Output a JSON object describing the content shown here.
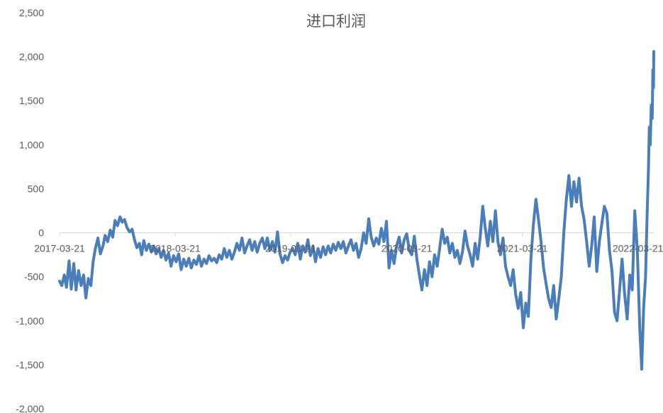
{
  "chart_data": {
    "type": "line",
    "title": "进口利润",
    "xlabel": "",
    "ylabel": "",
    "ylim": [
      -2000,
      2500
    ],
    "y_ticks": [
      2500,
      2000,
      1500,
      1000,
      500,
      0,
      -500,
      -1000,
      -1500,
      -2000
    ],
    "y_tick_labels": [
      "2,500",
      "2,000",
      "1,500",
      "1,000",
      "500",
      "0",
      "-500",
      "-1,000",
      "-1,500",
      "-2,000"
    ],
    "x_tick_labels": [
      "2017-03-21",
      "2018-03-21",
      "2019-03-21",
      "2020-03-21",
      "2021-03-21",
      "2022-03-21"
    ],
    "xlim": [
      "2017-03-21",
      "2022-05-10"
    ],
    "grid": false,
    "legend": "none",
    "colors": {
      "series": "#4a7ebb"
    },
    "series": [
      {
        "values": [
          [
            "2017-03-21",
            -550
          ],
          [
            "2017-03-28",
            -600
          ],
          [
            "2017-04-05",
            -480
          ],
          [
            "2017-04-12",
            -620
          ],
          [
            "2017-04-20",
            -320
          ],
          [
            "2017-04-27",
            -640
          ],
          [
            "2017-05-05",
            -350
          ],
          [
            "2017-05-12",
            -650
          ],
          [
            "2017-05-20",
            -430
          ],
          [
            "2017-05-28",
            -600
          ],
          [
            "2017-06-05",
            -480
          ],
          [
            "2017-06-12",
            -740
          ],
          [
            "2017-06-20",
            -520
          ],
          [
            "2017-06-28",
            -600
          ],
          [
            "2017-07-05",
            -330
          ],
          [
            "2017-07-12",
            -180
          ],
          [
            "2017-07-20",
            -60
          ],
          [
            "2017-07-28",
            -240
          ],
          [
            "2017-08-05",
            -150
          ],
          [
            "2017-08-12",
            -30
          ],
          [
            "2017-08-20",
            -100
          ],
          [
            "2017-08-28",
            30
          ],
          [
            "2017-09-05",
            -50
          ],
          [
            "2017-09-12",
            140
          ],
          [
            "2017-09-20",
            80
          ],
          [
            "2017-09-28",
            180
          ],
          [
            "2017-10-05",
            120
          ],
          [
            "2017-10-12",
            150
          ],
          [
            "2017-10-20",
            60
          ],
          [
            "2017-10-28",
            10
          ],
          [
            "2017-11-05",
            40
          ],
          [
            "2017-11-12",
            -70
          ],
          [
            "2017-11-20",
            -170
          ],
          [
            "2017-11-28",
            -120
          ],
          [
            "2017-12-05",
            -250
          ],
          [
            "2017-12-12",
            -90
          ],
          [
            "2017-12-20",
            -200
          ],
          [
            "2017-12-28",
            -130
          ],
          [
            "2018-01-05",
            -220
          ],
          [
            "2018-01-12",
            -150
          ],
          [
            "2018-01-20",
            -240
          ],
          [
            "2018-01-28",
            -180
          ],
          [
            "2018-02-05",
            -280
          ],
          [
            "2018-02-12",
            -200
          ],
          [
            "2018-02-20",
            -310
          ],
          [
            "2018-02-28",
            -230
          ],
          [
            "2018-03-08",
            -380
          ],
          [
            "2018-03-16",
            -260
          ],
          [
            "2018-03-24",
            -330
          ],
          [
            "2018-04-01",
            -240
          ],
          [
            "2018-04-09",
            -420
          ],
          [
            "2018-04-17",
            -300
          ],
          [
            "2018-04-25",
            -380
          ],
          [
            "2018-05-03",
            -290
          ],
          [
            "2018-05-11",
            -400
          ],
          [
            "2018-05-19",
            -310
          ],
          [
            "2018-05-27",
            -360
          ],
          [
            "2018-06-04",
            -260
          ],
          [
            "2018-06-12",
            -380
          ],
          [
            "2018-06-20",
            -300
          ],
          [
            "2018-06-28",
            -350
          ],
          [
            "2018-07-06",
            -260
          ],
          [
            "2018-07-14",
            -320
          ],
          [
            "2018-07-22",
            -290
          ],
          [
            "2018-07-30",
            -340
          ],
          [
            "2018-08-07",
            -250
          ],
          [
            "2018-08-15",
            -300
          ],
          [
            "2018-08-23",
            -180
          ],
          [
            "2018-08-31",
            -280
          ],
          [
            "2018-09-08",
            -200
          ],
          [
            "2018-09-16",
            -300
          ],
          [
            "2018-09-24",
            -220
          ],
          [
            "2018-10-02",
            -120
          ],
          [
            "2018-10-10",
            -200
          ],
          [
            "2018-10-18",
            -60
          ],
          [
            "2018-10-26",
            -230
          ],
          [
            "2018-11-03",
            -150
          ],
          [
            "2018-11-11",
            -80
          ],
          [
            "2018-11-19",
            -200
          ],
          [
            "2018-11-27",
            -100
          ],
          [
            "2018-12-05",
            -220
          ],
          [
            "2018-12-13",
            -120
          ],
          [
            "2018-12-21",
            -60
          ],
          [
            "2018-12-29",
            -180
          ],
          [
            "2019-01-06",
            -60
          ],
          [
            "2019-01-14",
            -200
          ],
          [
            "2019-01-22",
            -100
          ],
          [
            "2019-01-30",
            -220
          ],
          [
            "2019-02-07",
            10
          ],
          [
            "2019-02-15",
            -240
          ],
          [
            "2019-02-23",
            -340
          ],
          [
            "2019-03-03",
            -260
          ],
          [
            "2019-03-11",
            -310
          ],
          [
            "2019-03-19",
            -220
          ],
          [
            "2019-03-27",
            -180
          ],
          [
            "2019-04-04",
            -250
          ],
          [
            "2019-04-12",
            -120
          ],
          [
            "2019-04-20",
            -300
          ],
          [
            "2019-04-28",
            -150
          ],
          [
            "2019-05-06",
            -220
          ],
          [
            "2019-05-14",
            -80
          ],
          [
            "2019-05-22",
            -260
          ],
          [
            "2019-05-30",
            -150
          ],
          [
            "2019-06-07",
            -330
          ],
          [
            "2019-06-15",
            -180
          ],
          [
            "2019-06-23",
            -280
          ],
          [
            "2019-07-01",
            -160
          ],
          [
            "2019-07-09",
            -250
          ],
          [
            "2019-07-17",
            -150
          ],
          [
            "2019-07-25",
            -230
          ],
          [
            "2019-08-02",
            -130
          ],
          [
            "2019-08-10",
            -200
          ],
          [
            "2019-08-18",
            -110
          ],
          [
            "2019-08-26",
            -180
          ],
          [
            "2019-09-03",
            -100
          ],
          [
            "2019-09-11",
            -230
          ],
          [
            "2019-09-19",
            -150
          ],
          [
            "2019-09-27",
            -80
          ],
          [
            "2019-10-05",
            -200
          ],
          [
            "2019-10-13",
            -120
          ],
          [
            "2019-10-21",
            -280
          ],
          [
            "2019-10-29",
            -180
          ],
          [
            "2019-11-06",
            0
          ],
          [
            "2019-11-14",
            -120
          ],
          [
            "2019-11-22",
            160
          ],
          [
            "2019-11-30",
            -50
          ],
          [
            "2019-12-08",
            -150
          ],
          [
            "2019-12-16",
            -60
          ],
          [
            "2019-12-24",
            -130
          ],
          [
            "2020-01-01",
            50
          ],
          [
            "2020-01-09",
            -100
          ],
          [
            "2020-01-17",
            130
          ],
          [
            "2020-01-25",
            -400
          ],
          [
            "2020-02-02",
            -200
          ],
          [
            "2020-02-10",
            -350
          ],
          [
            "2020-02-18",
            -150
          ],
          [
            "2020-02-26",
            -50
          ],
          [
            "2020-03-05",
            -230
          ],
          [
            "2020-03-13",
            -80
          ],
          [
            "2020-03-21",
            -10
          ],
          [
            "2020-03-29",
            -200
          ],
          [
            "2020-04-06",
            -250
          ],
          [
            "2020-04-14",
            -40
          ],
          [
            "2020-04-22",
            -300
          ],
          [
            "2020-04-30",
            -480
          ],
          [
            "2020-05-08",
            -650
          ],
          [
            "2020-05-16",
            -420
          ],
          [
            "2020-05-24",
            -600
          ],
          [
            "2020-06-01",
            -330
          ],
          [
            "2020-06-09",
            -500
          ],
          [
            "2020-06-17",
            -250
          ],
          [
            "2020-06-25",
            -380
          ],
          [
            "2020-07-03",
            -180
          ],
          [
            "2020-07-11",
            40
          ],
          [
            "2020-07-19",
            -120
          ],
          [
            "2020-07-27",
            -50
          ],
          [
            "2020-08-04",
            -230
          ],
          [
            "2020-08-12",
            -120
          ],
          [
            "2020-08-20",
            -280
          ],
          [
            "2020-08-28",
            -200
          ],
          [
            "2020-09-05",
            -350
          ],
          [
            "2020-09-13",
            -220
          ],
          [
            "2020-09-21",
            20
          ],
          [
            "2020-09-29",
            -150
          ],
          [
            "2020-10-07",
            -250
          ],
          [
            "2020-10-15",
            -380
          ],
          [
            "2020-10-23",
            -120
          ],
          [
            "2020-10-31",
            -300
          ],
          [
            "2020-11-08",
            -50
          ],
          [
            "2020-11-16",
            300
          ],
          [
            "2020-11-24",
            50
          ],
          [
            "2020-12-02",
            -150
          ],
          [
            "2020-12-10",
            130
          ],
          [
            "2020-12-18",
            -100
          ],
          [
            "2020-12-26",
            250
          ],
          [
            "2021-01-03",
            -100
          ],
          [
            "2021-01-11",
            -250
          ],
          [
            "2021-01-19",
            -60
          ],
          [
            "2021-01-27",
            -380
          ],
          [
            "2021-02-04",
            -500
          ],
          [
            "2021-02-12",
            -600
          ],
          [
            "2021-02-20",
            -420
          ],
          [
            "2021-02-28",
            -700
          ],
          [
            "2021-03-08",
            -860
          ],
          [
            "2021-03-16",
            -680
          ],
          [
            "2021-03-24",
            -1080
          ],
          [
            "2021-04-01",
            -800
          ],
          [
            "2021-04-09",
            -950
          ],
          [
            "2021-04-17",
            -300
          ],
          [
            "2021-04-25",
            100
          ],
          [
            "2021-05-03",
            380
          ],
          [
            "2021-05-11",
            150
          ],
          [
            "2021-05-19",
            -100
          ],
          [
            "2021-05-27",
            -400
          ],
          [
            "2021-06-04",
            -580
          ],
          [
            "2021-06-12",
            -750
          ],
          [
            "2021-06-20",
            -850
          ],
          [
            "2021-06-28",
            -600
          ],
          [
            "2021-07-06",
            -980
          ],
          [
            "2021-07-14",
            -750
          ],
          [
            "2021-07-22",
            -500
          ],
          [
            "2021-07-30",
            0
          ],
          [
            "2021-08-07",
            380
          ],
          [
            "2021-08-15",
            650
          ],
          [
            "2021-08-23",
            300
          ],
          [
            "2021-08-31",
            580
          ],
          [
            "2021-09-08",
            350
          ],
          [
            "2021-09-16",
            620
          ],
          [
            "2021-09-24",
            300
          ],
          [
            "2021-10-02",
            150
          ],
          [
            "2021-10-10",
            -100
          ],
          [
            "2021-10-18",
            -380
          ],
          [
            "2021-10-26",
            -150
          ],
          [
            "2021-11-03",
            180
          ],
          [
            "2021-11-11",
            -440
          ],
          [
            "2021-11-19",
            -100
          ],
          [
            "2021-11-27",
            100
          ],
          [
            "2021-12-05",
            300
          ],
          [
            "2021-12-13",
            220
          ],
          [
            "2021-12-21",
            -200
          ],
          [
            "2021-12-29",
            -430
          ],
          [
            "2022-01-06",
            -900
          ],
          [
            "2022-01-14",
            -1000
          ],
          [
            "2022-01-22",
            -650
          ],
          [
            "2022-01-30",
            -300
          ],
          [
            "2022-02-07",
            -700
          ],
          [
            "2022-02-15",
            -980
          ],
          [
            "2022-02-23",
            -480
          ],
          [
            "2022-03-03",
            -650
          ],
          [
            "2022-03-11",
            250
          ],
          [
            "2022-03-19",
            -200
          ],
          [
            "2022-03-27",
            -1100
          ],
          [
            "2022-04-02",
            -1550
          ],
          [
            "2022-04-08",
            -850
          ],
          [
            "2022-04-14",
            -500
          ],
          [
            "2022-04-19",
            200
          ],
          [
            "2022-04-23",
            700
          ],
          [
            "2022-04-26",
            1200
          ],
          [
            "2022-04-29",
            1000
          ],
          [
            "2022-05-02",
            1450
          ],
          [
            "2022-05-05",
            1300
          ],
          [
            "2022-05-07",
            1850
          ],
          [
            "2022-05-09",
            1650
          ],
          [
            "2022-05-10",
            2060
          ]
        ]
      }
    ]
  }
}
